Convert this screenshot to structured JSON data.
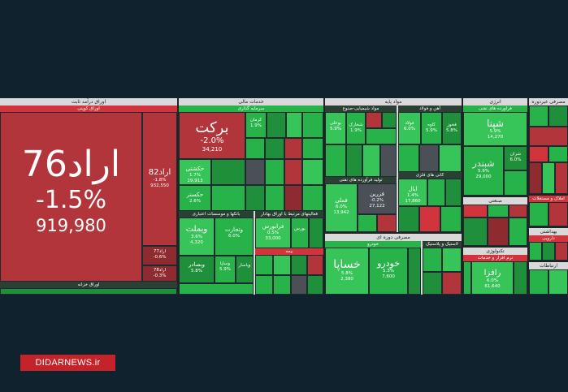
{
  "sectors": {
    "fixed_income": "اوراق درآمد ثابت",
    "fixed_income_sub": "اوراق کوپنی",
    "treasury_sub": "اوراق خزانه",
    "financial_services": "خدمات مالی",
    "investments_sub": "سرمایه گذاری",
    "banks_sub": "بانکها و موسسات اعتباری",
    "funds_sub": "فعالیتهای مرتبط با اوراق بهادار",
    "insurance_sub": "بیمه",
    "base_materials": "مواد پایه",
    "chemicals_sub": "مواد شیمیایی-صنوع",
    "metals_sub": "آهن و فولاد",
    "nonmetal_sub": "کانی های فلزی",
    "refinery_sub": "تولید فرآورده های نفتی",
    "plastics_sub": "لاستیک و پلاستیک",
    "consumer": "مصرفی دوره ای",
    "auto_sub": "خودرو",
    "energy": "انرژی",
    "oil_sub": "فراورده های نفتی",
    "industrial": "صنعتی",
    "tech": "تکنولوژی",
    "tech_sub": "نرم افزار و خدمات",
    "nonconsumer": "مصرفی غیردوره ای",
    "health": "بهداشتی",
    "pharma_sub": "دارویی",
    "telecom": "ارتباطات",
    "realestate_sub": "املاک و مستغلات"
  },
  "tiles": {
    "arad76": {
      "name": "اراد76",
      "pct": "-1.5%",
      "vol": "919,980"
    },
    "arad82": {
      "name": "اراد82",
      "pct": "-1.8%",
      "vol": "932,550"
    },
    "arad77": {
      "name": "اراد77",
      "pct": "-0.6%",
      "vol": "45,070"
    },
    "arad78": {
      "name": "اراد78",
      "pct": "-0.3%"
    },
    "barekat": {
      "name": "برکت",
      "pct": "-2.0%",
      "vol": "34,210"
    },
    "hekmati": {
      "name": "حکشتی",
      "pct": "1.7%",
      "vol": "19,913"
    },
    "hekestar": {
      "name": "حکستر",
      "pct": "2.6%"
    },
    "vbemellat": {
      "name": "وبملت",
      "pct": "3.6%",
      "vol": "4,320"
    },
    "vtejarat": {
      "name": "وتجارت",
      "pct": "6.0%"
    },
    "vbesader": {
      "name": "وبصادر",
      "pct": "5.8%"
    },
    "vsapa": {
      "name": "وساپا",
      "pct": "5.9%"
    },
    "vpasar": {
      "name": "وپاسار"
    },
    "faraboors": {
      "name": "فرابورس",
      "pct": "0.5%",
      "vol": "33,000"
    },
    "boors": {
      "name": "بورس"
    },
    "khesapa": {
      "name": "خساپا",
      "pct": "5.8%",
      "vol": "2,380"
    },
    "khodro": {
      "name": "خودرو",
      "pct": "5.3%",
      "vol": "7,600"
    },
    "shepna": {
      "name": "شپنا",
      "pct": "5.9%",
      "vol": "14,270"
    },
    "shebandar": {
      "name": "شبندر",
      "pct": "5.9%",
      "vol": "29,000"
    },
    "sheran": {
      "name": "شران",
      "pct": "6.0%"
    },
    "felama": {
      "name": "فملی",
      "pct": "6.0%",
      "vol": "13,942"
    },
    "fezar": {
      "name": "فزرین",
      "pct": "-0.2%",
      "vol": "27,122"
    },
    "foolad": {
      "name": "فولاد",
      "pct": "6.0%"
    },
    "kaveh": {
      "name": "کاوه",
      "pct": "5.9%"
    },
    "fakhouz": {
      "name": "فخوز",
      "pct": "5.8%"
    },
    "shebouli": {
      "name": "بوعلی",
      "pct": "5.9%"
    },
    "shekhark": {
      "name": "شخارک",
      "pct": "1.9%"
    },
    "iyal": {
      "name": "ایال",
      "pct": "1.4%",
      "vol": "17,860"
    },
    "rafza": {
      "name": "رافزا",
      "pct": "6.0%",
      "vol": "61,640"
    },
    "kerman": {
      "name": "کرمان",
      "pct": "1.9%"
    }
  },
  "watermark": "DIDARNEWS.ir"
}
